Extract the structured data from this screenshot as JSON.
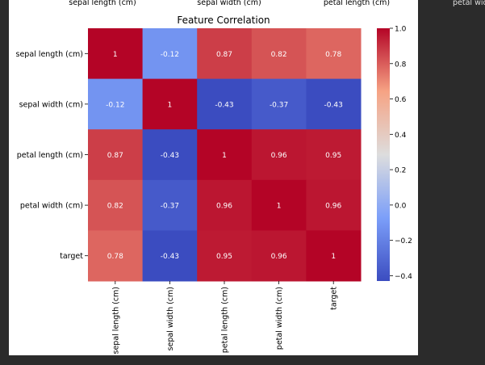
{
  "chart_data": {
    "type": "heatmap",
    "title": "Feature Correlation",
    "rows": [
      "sepal length (cm)",
      "sepal width (cm)",
      "petal length (cm)",
      "petal width (cm)",
      "target"
    ],
    "columns": [
      "sepal length (cm)",
      "sepal width (cm)",
      "petal length (cm)",
      "petal width (cm)",
      "target"
    ],
    "values": [
      [
        1,
        -0.12,
        0.87,
        0.82,
        0.78
      ],
      [
        -0.12,
        1,
        -0.43,
        -0.37,
        -0.43
      ],
      [
        0.87,
        -0.43,
        1,
        0.96,
        0.95
      ],
      [
        0.82,
        -0.37,
        0.96,
        1,
        0.96
      ],
      [
        0.78,
        -0.43,
        0.95,
        0.96,
        1
      ]
    ],
    "colormap": "coolwarm",
    "colorbar_range": [
      -0.43,
      1.0
    ],
    "colorbar_ticks": [
      "1.0",
      "0.8",
      "0.6",
      "0.4",
      "0.2",
      "0.0",
      "−0.2",
      "−0.4"
    ],
    "annotations": true
  },
  "clipped_top_labels": [
    "sepal length (cm)",
    "sepal width (cm)",
    "petal length (cm)",
    "petal wid"
  ]
}
